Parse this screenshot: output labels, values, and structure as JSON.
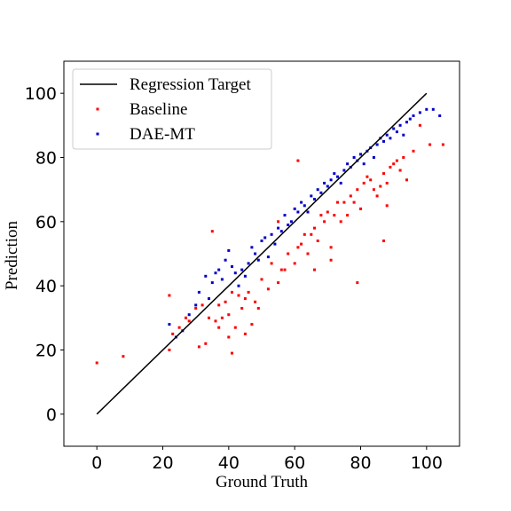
{
  "chart_data": {
    "type": "scatter",
    "xlabel": "Ground Truth",
    "ylabel": "Prediction",
    "xlim": [
      -10,
      110
    ],
    "ylim": [
      -10,
      110
    ],
    "xticks": [
      "0",
      "20",
      "40",
      "60",
      "80",
      "100"
    ],
    "yticks": [
      "0",
      "20",
      "40",
      "60",
      "80",
      "100"
    ],
    "legend_position": "top-left",
    "colors": {
      "target": "#000000",
      "baseline": "#ff0000",
      "dae": "#0000cc"
    },
    "series": [
      {
        "name": "Regression Target",
        "kind": "line",
        "x": [
          0,
          100
        ],
        "y": [
          0,
          100
        ]
      },
      {
        "name": "Baseline",
        "kind": "points",
        "x": [
          0,
          8,
          22,
          22,
          23,
          25,
          27,
          28,
          30,
          31,
          32,
          34,
          35,
          36,
          37,
          38,
          39,
          40,
          40,
          41,
          42,
          43,
          44,
          45,
          46,
          47,
          48,
          50,
          52,
          53,
          55,
          56,
          57,
          58,
          60,
          61,
          62,
          63,
          64,
          65,
          66,
          67,
          68,
          69,
          70,
          71,
          72,
          73,
          74,
          75,
          76,
          77,
          78,
          79,
          80,
          81,
          82,
          83,
          84,
          85,
          86,
          87,
          88,
          89,
          90,
          91,
          92,
          93,
          94,
          96,
          98,
          101,
          105,
          33,
          37,
          41,
          45,
          49,
          55,
          61,
          66,
          71,
          79,
          87,
          88
        ],
        "y": [
          16,
          18,
          37,
          20,
          25,
          27,
          30,
          29,
          33,
          21,
          34,
          30,
          57,
          29,
          27,
          30,
          35,
          24,
          31,
          19,
          27,
          37,
          33,
          25,
          38,
          28,
          35,
          42,
          39,
          47,
          41,
          45,
          45,
          50,
          47,
          52,
          53,
          56,
          50,
          56,
          58,
          54,
          62,
          60,
          63,
          52,
          62,
          66,
          60,
          66,
          62,
          68,
          66,
          70,
          64,
          72,
          74,
          73,
          70,
          68,
          71,
          75,
          72,
          77,
          78,
          79,
          76,
          80,
          73,
          82,
          90,
          84,
          84,
          22,
          34,
          38,
          36,
          33,
          60,
          79,
          45,
          48,
          41,
          54,
          65
        ]
      },
      {
        "name": "DAE-MT",
        "kind": "points",
        "x": [
          22,
          24,
          26,
          28,
          30,
          31,
          33,
          34,
          35,
          36,
          37,
          38,
          39,
          40,
          41,
          42,
          43,
          44,
          45,
          46,
          47,
          48,
          49,
          50,
          51,
          52,
          53,
          54,
          55,
          56,
          57,
          58,
          59,
          60,
          61,
          62,
          63,
          64,
          65,
          66,
          67,
          68,
          69,
          70,
          71,
          72,
          73,
          74,
          75,
          76,
          77,
          78,
          79,
          80,
          81,
          82,
          83,
          84,
          85,
          86,
          87,
          88,
          89,
          90,
          91,
          92,
          93,
          94,
          95,
          96,
          98,
          100,
          102,
          104
        ],
        "y": [
          28,
          24,
          26,
          31,
          34,
          38,
          43,
          36,
          41,
          44,
          45,
          42,
          48,
          51,
          46,
          44,
          40,
          45,
          43,
          47,
          52,
          50,
          48,
          54,
          55,
          49,
          56,
          53,
          58,
          57,
          62,
          59,
          60,
          64,
          63,
          66,
          65,
          63,
          68,
          67,
          70,
          69,
          72,
          71,
          73,
          75,
          74,
          72,
          76,
          78,
          77,
          80,
          79,
          81,
          78,
          82,
          83,
          80,
          84,
          86,
          85,
          87,
          86,
          89,
          88,
          90,
          87,
          91,
          92,
          93,
          94,
          95,
          95,
          93
        ]
      }
    ]
  }
}
